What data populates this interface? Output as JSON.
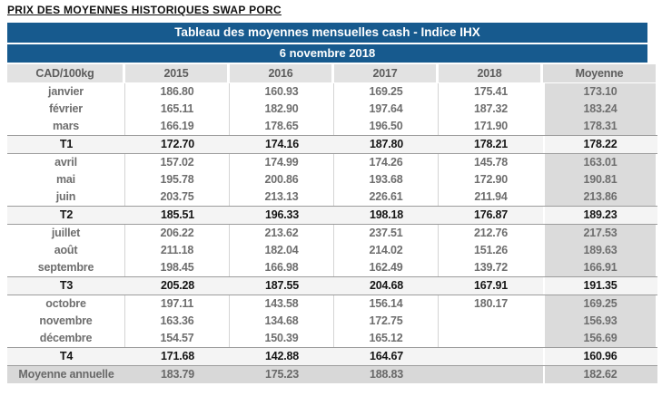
{
  "page_title": "PRIX DES MOYENNES HISTORIQUES SWAP PORC",
  "colors": {
    "band_blue": "#175a8e",
    "header_gray": "#e2e2e2",
    "moyenne_column_gray": "#dbdbdb",
    "quarter_row_gray": "#f4f4f4",
    "annual_row_gray": "#d8d8d8",
    "month_text_gray": "#6e6e6e"
  },
  "chart_data": {
    "type": "table",
    "title": "Tableau des moyennes mensuelles cash - Indice IHX",
    "subtitle": "6 novembre 2018",
    "columns": [
      "CAD/100kg",
      "2015",
      "2016",
      "2017",
      "2018",
      "Moyenne"
    ],
    "rows": [
      {
        "label": "janvier",
        "type": "month",
        "values": [
          "186.80",
          "160.93",
          "169.25",
          "175.41",
          "173.10"
        ]
      },
      {
        "label": "février",
        "type": "month",
        "values": [
          "165.11",
          "182.90",
          "197.64",
          "187.32",
          "183.24"
        ]
      },
      {
        "label": "mars",
        "type": "month",
        "values": [
          "166.19",
          "178.65",
          "196.50",
          "171.90",
          "178.31"
        ]
      },
      {
        "label": "T1",
        "type": "quarter",
        "values": [
          "172.70",
          "174.16",
          "187.80",
          "178.21",
          "178.22"
        ]
      },
      {
        "label": "avril",
        "type": "month",
        "values": [
          "157.02",
          "174.99",
          "174.26",
          "145.78",
          "163.01"
        ]
      },
      {
        "label": "mai",
        "type": "month",
        "values": [
          "195.78",
          "200.86",
          "193.68",
          "172.90",
          "190.81"
        ]
      },
      {
        "label": "juin",
        "type": "month",
        "values": [
          "203.75",
          "213.13",
          "226.61",
          "211.94",
          "213.86"
        ]
      },
      {
        "label": "T2",
        "type": "quarter",
        "values": [
          "185.51",
          "196.33",
          "198.18",
          "176.87",
          "189.23"
        ]
      },
      {
        "label": "juillet",
        "type": "month",
        "values": [
          "206.22",
          "213.62",
          "237.51",
          "212.76",
          "217.53"
        ]
      },
      {
        "label": "août",
        "type": "month",
        "values": [
          "211.18",
          "182.04",
          "214.02",
          "151.26",
          "189.63"
        ]
      },
      {
        "label": "septembre",
        "type": "month",
        "values": [
          "198.45",
          "166.98",
          "162.49",
          "139.72",
          "166.91"
        ]
      },
      {
        "label": "T3",
        "type": "quarter",
        "values": [
          "205.28",
          "187.55",
          "204.68",
          "167.91",
          "191.35"
        ]
      },
      {
        "label": "octobre",
        "type": "month",
        "values": [
          "197.11",
          "143.58",
          "156.14",
          "180.17",
          "169.25"
        ]
      },
      {
        "label": "novembre",
        "type": "month",
        "values": [
          "163.36",
          "134.68",
          "172.75",
          "",
          "156.93"
        ]
      },
      {
        "label": "décembre",
        "type": "month",
        "values": [
          "154.57",
          "150.39",
          "165.12",
          "",
          "156.69"
        ]
      },
      {
        "label": "T4",
        "type": "quarter",
        "values": [
          "171.68",
          "142.88",
          "164.67",
          "",
          "160.96"
        ]
      },
      {
        "label": "Moyenne annuelle",
        "type": "annual",
        "values": [
          "183.79",
          "175.23",
          "188.83",
          "",
          "182.62"
        ]
      }
    ]
  }
}
